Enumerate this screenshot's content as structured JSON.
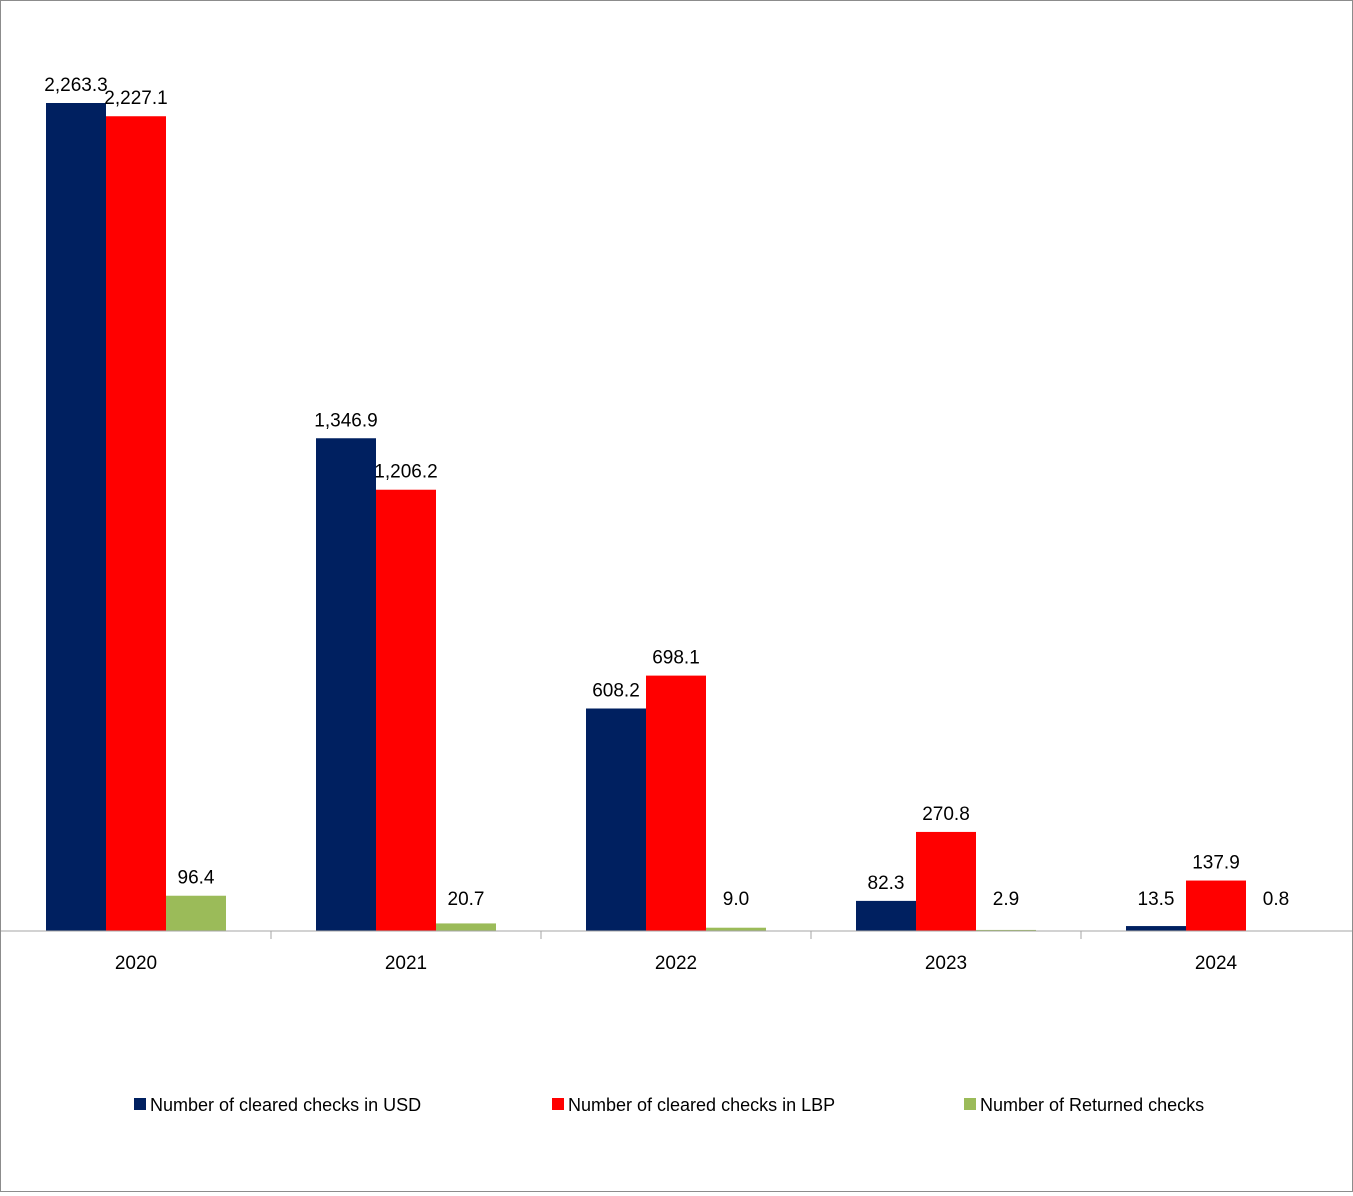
{
  "chart_data": {
    "type": "bar",
    "categories": [
      "2020",
      "2021",
      "2022",
      "2023",
      "2024"
    ],
    "series": [
      {
        "name": "Number of cleared checks in USD",
        "color": "#002060",
        "values": [
          2263.3,
          1346.9,
          608.2,
          82.3,
          13.5
        ],
        "labels": [
          "2,263.3",
          "1,346.9",
          "608.2",
          "82.3",
          "13.5"
        ]
      },
      {
        "name": "Number of cleared checks in LBP",
        "color": "#ff0000",
        "values": [
          2227.1,
          1206.2,
          698.1,
          270.8,
          137.9
        ],
        "labels": [
          "2,227.1",
          "1,206.2",
          "698.1",
          "270.8",
          "137.9"
        ]
      },
      {
        "name": "Number of Returned checks",
        "color": "#9bbb59",
        "values": [
          96.4,
          20.7,
          9.0,
          2.9,
          0.8
        ],
        "labels": [
          "96.4",
          "20.7",
          "9.0",
          "2.9",
          "0.8"
        ]
      }
    ],
    "ylim": [
      0,
      2263.3
    ],
    "grid": false,
    "legend_position": "bottom"
  }
}
